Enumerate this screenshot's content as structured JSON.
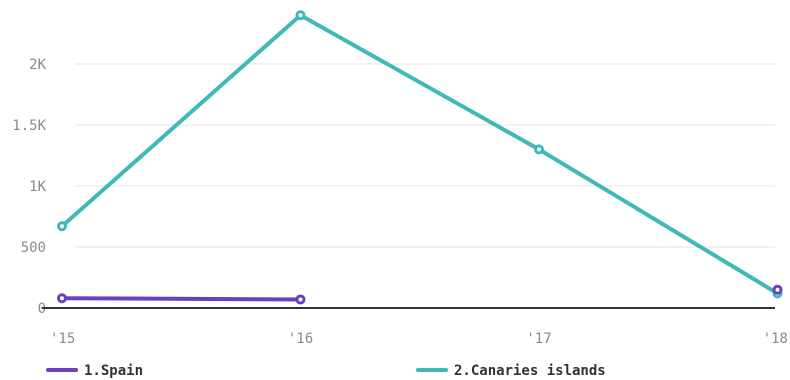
{
  "chart_data": {
    "type": "line",
    "categories": [
      "'15",
      "'16",
      "'17",
      "'18"
    ],
    "y_ticks": [
      {
        "value": 0,
        "label": "0"
      },
      {
        "value": 500,
        "label": "500"
      },
      {
        "value": 1000,
        "label": "1K"
      },
      {
        "value": 1500,
        "label": "1.5K"
      },
      {
        "value": 2000,
        "label": "2K"
      }
    ],
    "ylim": [
      0,
      2400
    ],
    "grid": true,
    "legend_position": "bottom",
    "series": [
      {
        "name": "1.Spain",
        "color": "#6a3fc4",
        "values": [
          80,
          70,
          null,
          150
        ]
      },
      {
        "name": "2.Canaries islands",
        "color": "#3fb8b8",
        "values": [
          670,
          2400,
          1300,
          120
        ]
      }
    ]
  }
}
